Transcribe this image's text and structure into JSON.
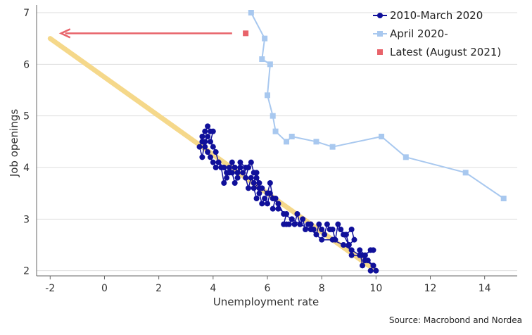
{
  "chart_data": {
    "type": "scatter",
    "xlabel": "Unemployment rate",
    "ylabel": "Job openings",
    "xlim": [
      -2.5,
      15.2
    ],
    "ylim": [
      1.9,
      7.15
    ],
    "x_ticks": [
      -2,
      0,
      2,
      4,
      6,
      8,
      10,
      12,
      14
    ],
    "y_ticks": [
      2,
      3,
      4,
      5,
      6,
      7
    ],
    "grid": "horizontal",
    "legend_position": "top-right",
    "source": "Source: Macrobond and Nordea",
    "colors": {
      "dark_series": "#10109a",
      "light_series": "#a8c8ef",
      "latest": "#e8636a",
      "trend": "#f5d88a",
      "grid": "#dddddd",
      "axis": "#666666"
    },
    "series": [
      {
        "name": "2010-March 2020",
        "marker": "circle",
        "line": true,
        "points": [
          [
            9.8,
            2.0
          ],
          [
            9.9,
            2.1
          ],
          [
            9.6,
            2.2
          ],
          [
            9.5,
            2.1
          ],
          [
            9.4,
            2.4
          ],
          [
            9.6,
            2.3
          ],
          [
            9.8,
            2.4
          ],
          [
            9.9,
            2.4
          ],
          [
            9.5,
            2.3
          ],
          [
            9.1,
            2.3
          ],
          [
            9.0,
            2.5
          ],
          [
            9.2,
            2.6
          ],
          [
            9.1,
            2.8
          ],
          [
            8.9,
            2.7
          ],
          [
            9.0,
            2.5
          ],
          [
            8.8,
            2.7
          ],
          [
            8.7,
            2.8
          ],
          [
            8.6,
            2.9
          ],
          [
            8.5,
            2.6
          ],
          [
            8.4,
            2.8
          ],
          [
            8.3,
            2.8
          ],
          [
            8.2,
            2.9
          ],
          [
            8.1,
            2.7
          ],
          [
            8.0,
            2.8
          ],
          [
            7.9,
            2.9
          ],
          [
            7.8,
            2.7
          ],
          [
            7.7,
            2.8
          ],
          [
            7.6,
            2.9
          ],
          [
            7.5,
            2.9
          ],
          [
            7.4,
            2.8
          ],
          [
            7.3,
            3.0
          ],
          [
            7.2,
            2.9
          ],
          [
            7.1,
            3.1
          ],
          [
            7.0,
            2.9
          ],
          [
            6.9,
            3.0
          ],
          [
            6.8,
            2.9
          ],
          [
            6.7,
            2.9
          ],
          [
            6.6,
            2.9
          ],
          [
            6.7,
            3.1
          ],
          [
            6.4,
            3.2
          ],
          [
            6.2,
            3.2
          ],
          [
            6.3,
            3.4
          ],
          [
            6.1,
            3.5
          ],
          [
            6.0,
            3.3
          ],
          [
            5.9,
            3.4
          ],
          [
            5.8,
            3.3
          ],
          [
            5.7,
            3.5
          ],
          [
            5.6,
            3.4
          ],
          [
            5.5,
            3.6
          ],
          [
            5.7,
            3.7
          ],
          [
            5.6,
            3.9
          ],
          [
            5.5,
            3.7
          ],
          [
            5.4,
            3.8
          ],
          [
            5.3,
            3.6
          ],
          [
            5.2,
            3.8
          ],
          [
            5.3,
            4.0
          ],
          [
            5.1,
            3.9
          ],
          [
            5.0,
            4.0
          ],
          [
            4.9,
            3.8
          ],
          [
            4.8,
            3.7
          ],
          [
            4.7,
            3.9
          ],
          [
            4.6,
            4.0
          ],
          [
            4.5,
            3.8
          ],
          [
            4.4,
            3.7
          ],
          [
            4.3,
            4.0
          ],
          [
            4.2,
            4.1
          ],
          [
            4.1,
            4.0
          ],
          [
            4.0,
            4.1
          ],
          [
            3.9,
            4.2
          ],
          [
            3.8,
            4.3
          ],
          [
            3.7,
            4.4
          ],
          [
            3.6,
            4.5
          ],
          [
            3.5,
            4.4
          ],
          [
            3.6,
            4.2
          ],
          [
            3.7,
            4.5
          ],
          [
            3.8,
            4.6
          ],
          [
            3.6,
            4.6
          ],
          [
            3.7,
            4.7
          ],
          [
            3.8,
            4.8
          ],
          [
            3.9,
            4.7
          ],
          [
            4.0,
            4.7
          ],
          [
            3.9,
            4.5
          ],
          [
            4.0,
            4.4
          ],
          [
            4.1,
            4.3
          ],
          [
            4.2,
            4.1
          ],
          [
            4.4,
            4.0
          ],
          [
            4.5,
            3.9
          ],
          [
            4.6,
            3.9
          ],
          [
            4.7,
            4.1
          ],
          [
            4.8,
            4.0
          ],
          [
            4.9,
            3.9
          ],
          [
            5.0,
            4.1
          ],
          [
            5.2,
            4.0
          ],
          [
            5.4,
            4.1
          ],
          [
            5.5,
            3.9
          ],
          [
            5.6,
            3.8
          ],
          [
            5.7,
            3.6
          ],
          [
            5.8,
            3.6
          ],
          [
            6.0,
            3.5
          ],
          [
            6.1,
            3.7
          ],
          [
            6.2,
            3.4
          ],
          [
            6.4,
            3.3
          ],
          [
            6.6,
            3.1
          ],
          [
            6.9,
            3.0
          ],
          [
            7.2,
            2.9
          ],
          [
            7.6,
            2.8
          ],
          [
            8.0,
            2.6
          ],
          [
            8.4,
            2.6
          ],
          [
            8.8,
            2.5
          ],
          [
            9.1,
            2.4
          ],
          [
            9.4,
            2.3
          ],
          [
            9.7,
            2.2
          ],
          [
            9.9,
            2.1
          ],
          [
            10.0,
            2.0
          ]
        ]
      },
      {
        "name": "April 2020-",
        "marker": "square",
        "line": true,
        "points": [
          [
            14.7,
            3.4
          ],
          [
            13.3,
            3.9
          ],
          [
            11.1,
            4.2
          ],
          [
            10.2,
            4.6
          ],
          [
            8.4,
            4.4
          ],
          [
            7.8,
            4.5
          ],
          [
            6.9,
            4.6
          ],
          [
            6.7,
            4.5
          ],
          [
            6.3,
            4.7
          ],
          [
            6.2,
            5.0
          ],
          [
            6.0,
            5.4
          ],
          [
            6.1,
            6.0
          ],
          [
            5.8,
            6.1
          ],
          [
            5.9,
            6.5
          ],
          [
            5.4,
            7.0
          ]
        ]
      },
      {
        "name": "Latest (August 2021)",
        "marker": "square",
        "line": false,
        "points": [
          [
            5.2,
            6.6
          ]
        ]
      }
    ],
    "trend_line": {
      "from": [
        -2.0,
        6.5
      ],
      "to": [
        10.0,
        2.0
      ]
    },
    "arrow": {
      "from": [
        4.7,
        6.6
      ],
      "to": [
        -1.6,
        6.6
      ]
    }
  }
}
